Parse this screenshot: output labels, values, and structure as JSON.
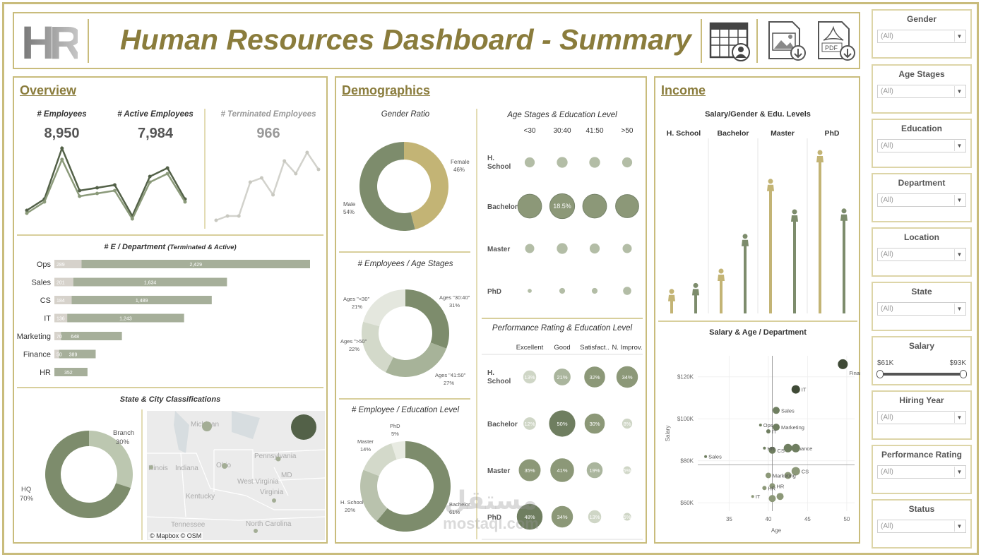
{
  "header": {
    "logo": "HR",
    "title": "Human Resources Dashboard - Summary",
    "icons": [
      "calendar-user-icon",
      "image-download-icon",
      "pdf-download-icon"
    ],
    "pdf_label": "PDF"
  },
  "overview": {
    "section_title": "Overview",
    "kpis": [
      {
        "label": "# Employees",
        "value": "8,950"
      },
      {
        "label": "# Active Employees",
        "value": "7,984"
      },
      {
        "label": "# Terminated Employees",
        "value": "966"
      }
    ],
    "dept_title": "# E / Department",
    "dept_subtitle": "(Terminated & Active)",
    "departments": [
      {
        "name": "Ops",
        "terminated": 289,
        "active": 2429,
        "active_label": "2,429"
      },
      {
        "name": "Sales",
        "terminated": 201,
        "active": 1634,
        "active_label": "1,634"
      },
      {
        "name": "CS",
        "terminated": 184,
        "active": 1489,
        "active_label": "1,489"
      },
      {
        "name": "IT",
        "terminated": 136,
        "active": 1243,
        "active_label": "1,243"
      },
      {
        "name": "Marketing",
        "terminated": 70,
        "active": 648,
        "active_label": "648"
      },
      {
        "name": "Finance",
        "terminated": 50,
        "active": 389,
        "active_label": "389"
      },
      {
        "name": "HR",
        "terminated": 0,
        "active": 352,
        "active_label": "352"
      }
    ],
    "state_title": "State & City Classifications",
    "map_credit": "© Mapbox © OSM",
    "map_labels": [
      "Michigan",
      "Illinois",
      "Indiana",
      "Ohio",
      "Pennsylvania",
      "West Virginia",
      "MD",
      "Kentucky",
      "Virginia",
      "Tennessee",
      "North Carolina"
    ]
  },
  "demographics": {
    "section_title": "Demographics",
    "gender_title": "Gender Ratio",
    "age_stage_title": "# Employees / Age Stages",
    "edu_title": "# Employee / Education Level",
    "age_edu_title": "Age Stages & Education Level",
    "age_cols": [
      "<30",
      "30:40",
      "41:50",
      ">50"
    ],
    "edu_rows": [
      "H. School",
      "Bachelor",
      "Master",
      "PhD"
    ],
    "age_edu_highlight": "18.5%",
    "perf_title": "Performance Rating & Education Level",
    "perf_cols": [
      "Excellent",
      "Good",
      "Satisfact..",
      "N. Improv."
    ],
    "perf_values": [
      [
        "13%",
        "21%",
        "32%",
        "34%"
      ],
      [
        "12%",
        "50%",
        "30%",
        "8%"
      ],
      [
        "35%",
        "41%",
        "19%",
        "5%"
      ],
      [
        "48%",
        "34%",
        "13%",
        "5%"
      ]
    ]
  },
  "income": {
    "section_title": "Income",
    "salary_edu_title": "Salary/Gender & Edu. Levels",
    "edu_cols": [
      "H. School",
      "Bachelor",
      "Master",
      "PhD"
    ],
    "scatter_title": "Salary & Age / Department",
    "scatter_ylabel": "Salary",
    "scatter_xlabel": "Age",
    "scatter_yticks": [
      "$60K",
      "$80K",
      "$100K",
      "$120K"
    ],
    "scatter_xticks": [
      "35",
      "40",
      "45",
      "50"
    ],
    "scatter_labels": [
      "Finance",
      "IT",
      "Sales",
      "Marketing",
      "Ops",
      "IT",
      "Finance",
      "CS",
      "HR",
      "Sales",
      "CS",
      "Marketing",
      "HR",
      "HR",
      "IT"
    ]
  },
  "filters": [
    {
      "title": "Gender",
      "value": "(All)"
    },
    {
      "title": "Age Stages",
      "value": "(All)"
    },
    {
      "title": "Education",
      "value": "(All)"
    },
    {
      "title": "Department",
      "value": "(All)"
    },
    {
      "title": "Location",
      "value": "(All)"
    },
    {
      "title": "State",
      "value": "(All)"
    },
    {
      "title": "Salary",
      "min": "$61K",
      "max": "$93K"
    },
    {
      "title": "Hiring Year",
      "value": "(All)"
    },
    {
      "title": "Performance Rating",
      "value": "(All)"
    },
    {
      "title": "Status",
      "value": "(All)"
    }
  ],
  "watermark": {
    "arabic": "مستقل",
    "latin": "mostaql.com"
  },
  "colors": {
    "gold": "#8a7c3c",
    "olive": "#7d8c6c",
    "dark": "#536148",
    "light": "#b9c4aa",
    "tan": "#c3b475",
    "pale": "#d8d8d0"
  },
  "chart_data": [
    {
      "type": "line",
      "title": "Employees trend",
      "series": [
        {
          "name": "# Employees",
          "values": [
            1,
            3,
            12,
            4.5,
            5,
            5.5,
            0,
            7,
            8.5,
            3
          ]
        },
        {
          "name": "# Active Employees",
          "values": [
            0.5,
            2.5,
            10,
            3.5,
            4,
            4.5,
            -0.5,
            6,
            7.5,
            2.5
          ]
        }
      ]
    },
    {
      "type": "line",
      "title": "Terminated trend",
      "series": [
        {
          "name": "# Terminated Employees",
          "values": [
            1,
            2,
            2,
            10,
            11,
            7,
            15,
            12,
            17,
            13
          ]
        }
      ]
    },
    {
      "type": "bar",
      "title": "# E / Department (Terminated & Active)",
      "categories": [
        "Ops",
        "Sales",
        "CS",
        "IT",
        "Marketing",
        "Finance",
        "HR"
      ],
      "series": [
        {
          "name": "Terminated",
          "values": [
            289,
            201,
            184,
            136,
            70,
            50,
            0
          ]
        },
        {
          "name": "Active",
          "values": [
            2429,
            1634,
            1489,
            1243,
            648,
            389,
            352
          ]
        }
      ]
    },
    {
      "type": "pie",
      "title": "State & City Classifications",
      "labels": [
        "HQ",
        "Branch"
      ],
      "values": [
        70,
        30
      ],
      "label_text": [
        "HQ\n70%",
        "Branch\n30%"
      ]
    },
    {
      "type": "pie",
      "title": "Gender Ratio",
      "labels": [
        "Male",
        "Female"
      ],
      "values": [
        54,
        46
      ],
      "pct_text": [
        "54%",
        "46%"
      ]
    },
    {
      "type": "pie",
      "title": "# Employees / Age Stages",
      "labels": [
        "Ages \"30:40\"",
        "Ages \"41:50\"",
        "Ages \">50\"",
        "Ages \"<30\""
      ],
      "values": [
        31,
        27,
        22,
        21
      ],
      "pct_text": [
        "31%",
        "27%",
        "22%",
        "21%"
      ]
    },
    {
      "type": "pie",
      "title": "# Employee / Education Level",
      "labels": [
        "Bachelor",
        "H. School",
        "Master",
        "PhD"
      ],
      "values": [
        61,
        20,
        14,
        5
      ],
      "pct_text": [
        "61%",
        "20%",
        "14%",
        "5%"
      ]
    },
    {
      "type": "scatter",
      "title": "Age Stages & Education Level (bubble size)",
      "rows": [
        "H. School",
        "Bachelor",
        "Master",
        "PhD"
      ],
      "cols": [
        "<30",
        "30:40",
        "41:50",
        ">50"
      ],
      "values": [
        [
          3,
          3.5,
          3.5,
          3
        ],
        [
          17,
          18.5,
          17,
          16
        ],
        [
          2.5,
          3.5,
          3,
          2.5
        ],
        [
          0.5,
          1,
          1,
          2
        ]
      ]
    },
    {
      "type": "scatter",
      "title": "Performance Rating & Education Level",
      "rows": [
        "H. School",
        "Bachelor",
        "Master",
        "PhD"
      ],
      "cols": [
        "Excellent",
        "Good",
        "Satisfact..",
        "N. Improv."
      ],
      "values": [
        [
          13,
          21,
          32,
          34
        ],
        [
          12,
          50,
          30,
          8
        ],
        [
          35,
          41,
          19,
          5
        ],
        [
          48,
          34,
          13,
          5
        ]
      ]
    },
    {
      "type": "bar",
      "title": "Salary/Gender & Edu. Levels",
      "categories": [
        "H. School",
        "Bachelor",
        "Master",
        "PhD"
      ],
      "series": [
        {
          "name": "Female",
          "values": [
            26,
            50,
            156,
            190
          ]
        },
        {
          "name": "Male",
          "values": [
            33,
            91,
            120,
            121
          ]
        }
      ]
    },
    {
      "type": "scatter",
      "title": "Salary & Age / Department",
      "xlabel": "Age",
      "ylabel": "Salary",
      "xlim": [
        31,
        51
      ],
      "ylim": [
        56,
        130
      ],
      "points": [
        {
          "x": 49.5,
          "y": 126,
          "label": "Finance",
          "size": 7,
          "shade": "dark"
        },
        {
          "x": 43.5,
          "y": 114,
          "label": "IT",
          "size": 6,
          "shade": "dark"
        },
        {
          "x": 41,
          "y": 104,
          "label": "Sales",
          "size": 5,
          "shade": "mid"
        },
        {
          "x": 41,
          "y": 96,
          "label": "Marketing",
          "size": 5,
          "shade": "mid"
        },
        {
          "x": 39,
          "y": 97,
          "label": "Ops",
          "size": 2,
          "shade": "mid"
        },
        {
          "x": 40,
          "y": 94,
          "label": "IT",
          "size": 3,
          "shade": "mid"
        },
        {
          "x": 42.5,
          "y": 86,
          "label": "Finance",
          "size": 6,
          "shade": "mid"
        },
        {
          "x": 43.5,
          "y": 86,
          "label": "",
          "size": 6,
          "shade": "mid"
        },
        {
          "x": 40.5,
          "y": 85,
          "label": "CS",
          "size": 5,
          "shade": "mid"
        },
        {
          "x": 39.5,
          "y": 86,
          "label": "IT",
          "size": 2,
          "shade": "mid"
        },
        {
          "x": 32,
          "y": 82,
          "label": "HR",
          "size": 2,
          "shade": "mid"
        },
        {
          "x": 43.5,
          "y": 75,
          "label": "Sales",
          "size": 6,
          "shade": "light"
        },
        {
          "x": 42.5,
          "y": 73,
          "label": "",
          "size": 5,
          "shade": "light"
        },
        {
          "x": 40,
          "y": 73,
          "label": "CS",
          "size": 4,
          "shade": "light"
        },
        {
          "x": 40.5,
          "y": 68,
          "label": "Marketing",
          "size": 4,
          "shade": "light"
        },
        {
          "x": 39.5,
          "y": 67,
          "label": "HR",
          "size": 3,
          "shade": "light"
        },
        {
          "x": 38,
          "y": 63,
          "label": "HR",
          "size": 2,
          "shade": "light"
        },
        {
          "x": 41.5,
          "y": 63,
          "label": "HR",
          "size": 5,
          "shade": "light"
        },
        {
          "x": 40.5,
          "y": 62,
          "label": "",
          "size": 5,
          "shade": "light"
        }
      ]
    }
  ]
}
